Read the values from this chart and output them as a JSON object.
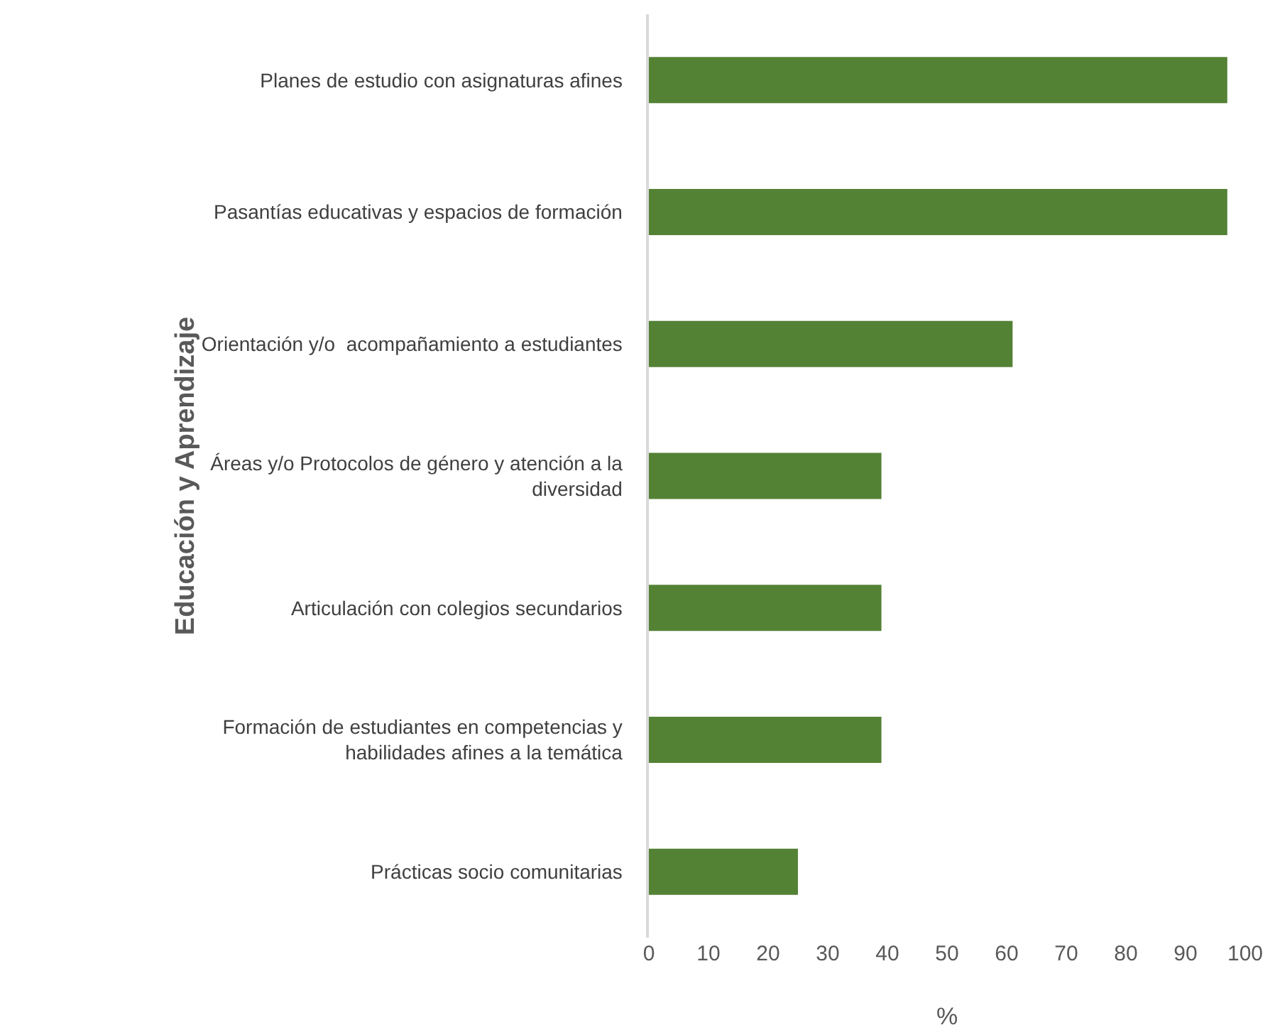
{
  "chart_data": {
    "type": "bar",
    "orientation": "horizontal",
    "ylabel": "Educación y Aprendizaje",
    "xlabel": "%",
    "categories": [
      "Planes de estudio con asignaturas afines",
      "Pasantías educativas y espacios de formación",
      "Orientación y/o  acompañamiento a estudiantes",
      "Áreas y/o Protocolos de género y atención a la diversidad",
      "Articulación con colegios secundarios",
      "Formación de estudiantes en competencias y habilidades afines a la temática",
      "Prácticas socio comunitarias"
    ],
    "values": [
      97,
      97,
      61,
      39,
      39,
      39,
      25
    ],
    "color": "#548235",
    "xlim": [
      0,
      100
    ],
    "xticks": [
      0,
      10,
      20,
      30,
      40,
      50,
      60,
      70,
      80,
      90,
      100
    ],
    "grid": false
  }
}
